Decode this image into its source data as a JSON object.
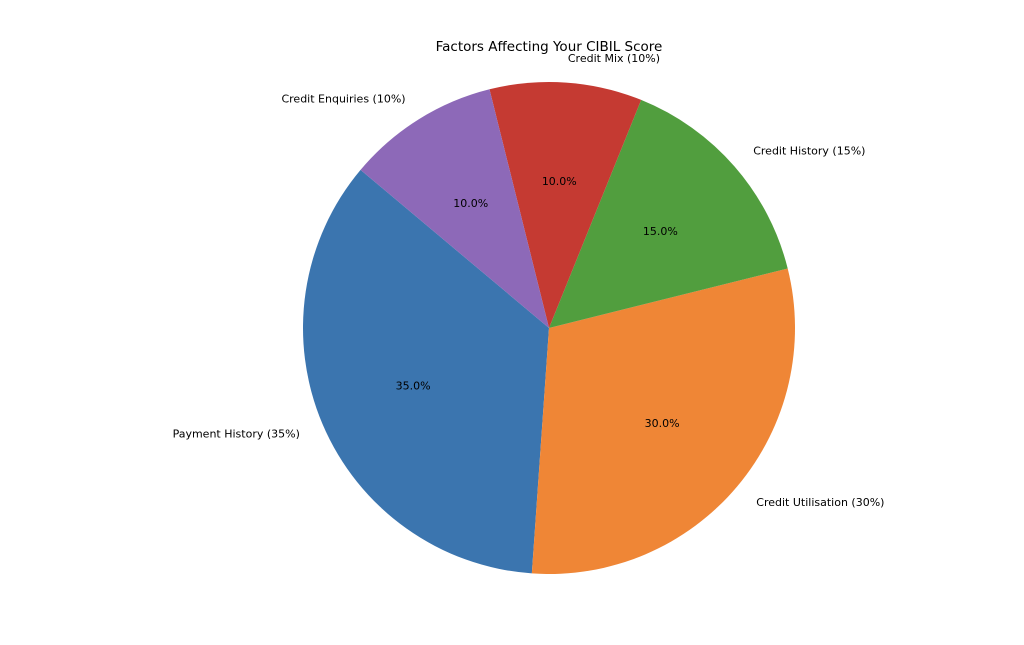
{
  "chart_data": {
    "type": "pie",
    "title": "Factors Affecting Your CIBIL Score",
    "start_angle_deg": 140,
    "direction": "counterclockwise",
    "slices": [
      {
        "label": "Payment History (35%)",
        "value": 35,
        "pct_label": "35.0%",
        "color": "#3b75af"
      },
      {
        "label": "Credit Utilisation (30%)",
        "value": 30,
        "pct_label": "30.0%",
        "color": "#ef8636"
      },
      {
        "label": "Credit History (15%)",
        "value": 15,
        "pct_label": "15.0%",
        "color": "#519e3e"
      },
      {
        "label": "Credit Mix (10%)",
        "value": 10,
        "pct_label": "10.0%",
        "color": "#c53a32"
      },
      {
        "label": "Credit Enquiries (10%)",
        "value": 10,
        "pct_label": "10.0%",
        "color": "#8d69b8"
      }
    ]
  }
}
